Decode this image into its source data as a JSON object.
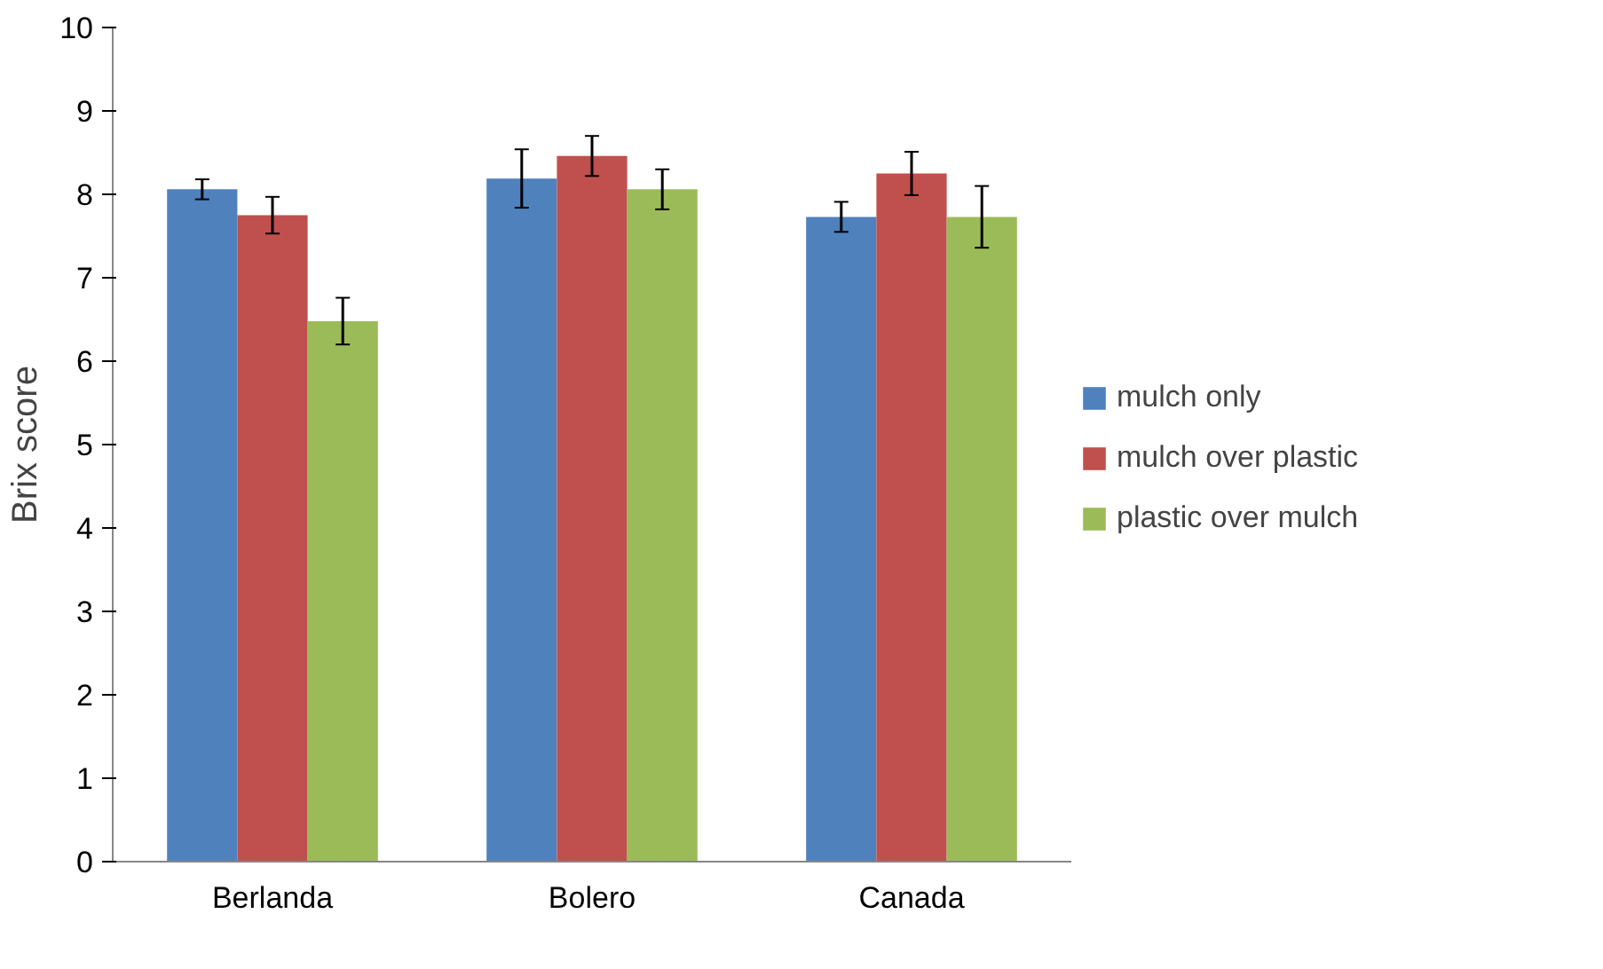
{
  "chart_data": {
    "type": "bar",
    "ylabel": "Brix score",
    "categories": [
      "Berlanda",
      "Bolero",
      "Canada"
    ],
    "ylim": [
      0,
      10
    ],
    "yticks": [
      0,
      1,
      2,
      3,
      4,
      5,
      6,
      7,
      8,
      9,
      10
    ],
    "grid": false,
    "legend": "right",
    "series": [
      {
        "name": "mulch only",
        "color": "#4f81bd",
        "values": [
          8.06,
          8.19,
          7.73
        ],
        "errors": [
          0.12,
          0.35,
          0.18
        ]
      },
      {
        "name": "mulch over plastic",
        "color": "#c0504d",
        "values": [
          7.75,
          8.46,
          8.25
        ],
        "errors": [
          0.22,
          0.24,
          0.26
        ]
      },
      {
        "name": "plastic over mulch",
        "color": "#9bbb59",
        "values": [
          6.48,
          8.06,
          7.73
        ],
        "errors": [
          0.28,
          0.24,
          0.37
        ]
      }
    ]
  }
}
